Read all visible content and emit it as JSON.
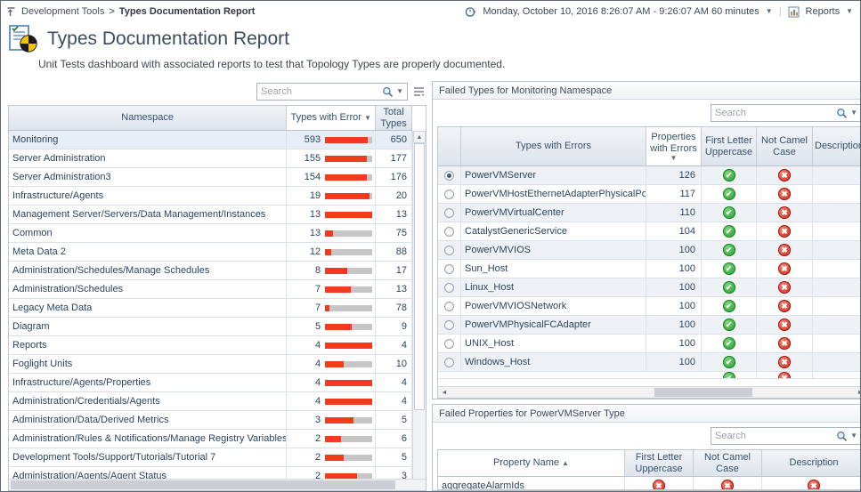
{
  "topbar": {
    "breadcrumb": {
      "parent": "Development Tools",
      "separator": ">",
      "current": "Types Documentation Report"
    },
    "time_range": "Monday, October 10, 2016 8:26:07 AM - 9:26:07 AM 60 minutes",
    "reports_label": "Reports"
  },
  "header": {
    "title": "Types Documentation Report",
    "subtitle": "Unit Tests dashboard with associated reports to test that Topology Types are properly documented."
  },
  "icons": {
    "caret": "▼",
    "sort_desc": "▼",
    "sort_asc": "▲",
    "collapse": "▲",
    "pass": "✔",
    "fail": "✖",
    "scroll_up": "▲",
    "scroll_down": "▼",
    "scroll_left": "◄",
    "scroll_right": "►"
  },
  "colors": {
    "bar_red": "#f13a1e",
    "bar_track": "#c6c6c6",
    "pass_green": "#1d9e2c",
    "fail_red": "#cf2114"
  },
  "namespace_table": {
    "search_placeholder": "Search",
    "columns": {
      "namespace": "Namespace",
      "errors": "Types with Error",
      "total": "Total Types"
    },
    "sort": {
      "column": "errors",
      "direction": "desc"
    },
    "rows": [
      {
        "namespace": "Monitoring",
        "errors": 593,
        "total": 650,
        "selected": true
      },
      {
        "namespace": "Server Administration",
        "errors": 155,
        "total": 177
      },
      {
        "namespace": "Server Administration3",
        "errors": 154,
        "total": 176
      },
      {
        "namespace": "Infrastructure/Agents",
        "errors": 19,
        "total": 20
      },
      {
        "namespace": "Management Server/Servers/Data Management/Instances",
        "errors": 13,
        "total": 13
      },
      {
        "namespace": "Common",
        "errors": 13,
        "total": 75
      },
      {
        "namespace": "Meta Data 2",
        "errors": 12,
        "total": 88
      },
      {
        "namespace": "Administration/Schedules/Manage Schedules",
        "errors": 8,
        "total": 17
      },
      {
        "namespace": "Administration/Schedules",
        "errors": 7,
        "total": 13
      },
      {
        "namespace": "Legacy Meta Data",
        "errors": 7,
        "total": 78
      },
      {
        "namespace": "Diagram",
        "errors": 5,
        "total": 9
      },
      {
        "namespace": "Reports",
        "errors": 4,
        "total": 4
      },
      {
        "namespace": "Foglight Units",
        "errors": 4,
        "total": 10
      },
      {
        "namespace": "Infrastructure/Agents/Properties",
        "errors": 4,
        "total": 4
      },
      {
        "namespace": "Administration/Credentials/Agents",
        "errors": 4,
        "total": 4
      },
      {
        "namespace": "Administration/Data/Derived Metrics",
        "errors": 3,
        "total": 5
      },
      {
        "namespace": "Administration/Rules & Notifications/Manage Registry Variables",
        "errors": 2,
        "total": 6
      },
      {
        "namespace": "Development Tools/Support/Tutorials/Tutorial 7",
        "errors": 2,
        "total": 5
      },
      {
        "namespace": "Administration/Agents/Agent Status",
        "errors": 2,
        "total": 3
      }
    ]
  },
  "failed_types": {
    "title": "Failed Types for Monitoring Namespace",
    "search_placeholder": "Search",
    "columns": {
      "types": "Types with Errors",
      "props": "Properties with Errors",
      "flu": "First Letter Uppercase",
      "ncc": "Not Camel Case",
      "desc": "Description"
    },
    "sort": {
      "column": "props",
      "direction": "desc"
    },
    "rows": [
      {
        "type": "PowerVMServer",
        "props": 126,
        "flu": "pass",
        "ncc": "fail",
        "selected": true
      },
      {
        "type": "PowerVMHostEthernetAdapterPhysicalPort",
        "props": 117,
        "flu": "pass",
        "ncc": "fail"
      },
      {
        "type": "PowerVMVirtualCenter",
        "props": 110,
        "flu": "pass",
        "ncc": "fail"
      },
      {
        "type": "CatalystGenericService",
        "props": 104,
        "flu": "pass",
        "ncc": "fail"
      },
      {
        "type": "PowerVMVIOS",
        "props": 100,
        "flu": "pass",
        "ncc": "fail"
      },
      {
        "type": "Sun_Host",
        "props": 100,
        "flu": "pass",
        "ncc": "fail"
      },
      {
        "type": "Linux_Host",
        "props": 100,
        "flu": "pass",
        "ncc": "fail"
      },
      {
        "type": "PowerVMVIOSNetwork",
        "props": 100,
        "flu": "pass",
        "ncc": "fail"
      },
      {
        "type": "PowerVMPhysicalFCAdapter",
        "props": 100,
        "flu": "pass",
        "ncc": "fail"
      },
      {
        "type": "UNIX_Host",
        "props": 100,
        "flu": "pass",
        "ncc": "fail"
      },
      {
        "type": "Windows_Host",
        "props": 100,
        "flu": "pass",
        "ncc": "fail"
      },
      {
        "type": "",
        "props": "",
        "flu": "pass",
        "ncc": "fail",
        "partial": true
      }
    ]
  },
  "failed_properties": {
    "title": "Failed Properties for PowerVMServer Type",
    "search_placeholder": "Search",
    "columns": {
      "name": "Property Name",
      "flu": "First Letter Uppercase",
      "ncc": "Not Camel Case",
      "desc": "Description"
    },
    "sort": {
      "column": "name",
      "direction": "asc"
    },
    "rows": [
      {
        "name": "aggregateAlarmIds",
        "flu": "fail",
        "ncc": "fail",
        "desc": "fail"
      }
    ]
  }
}
